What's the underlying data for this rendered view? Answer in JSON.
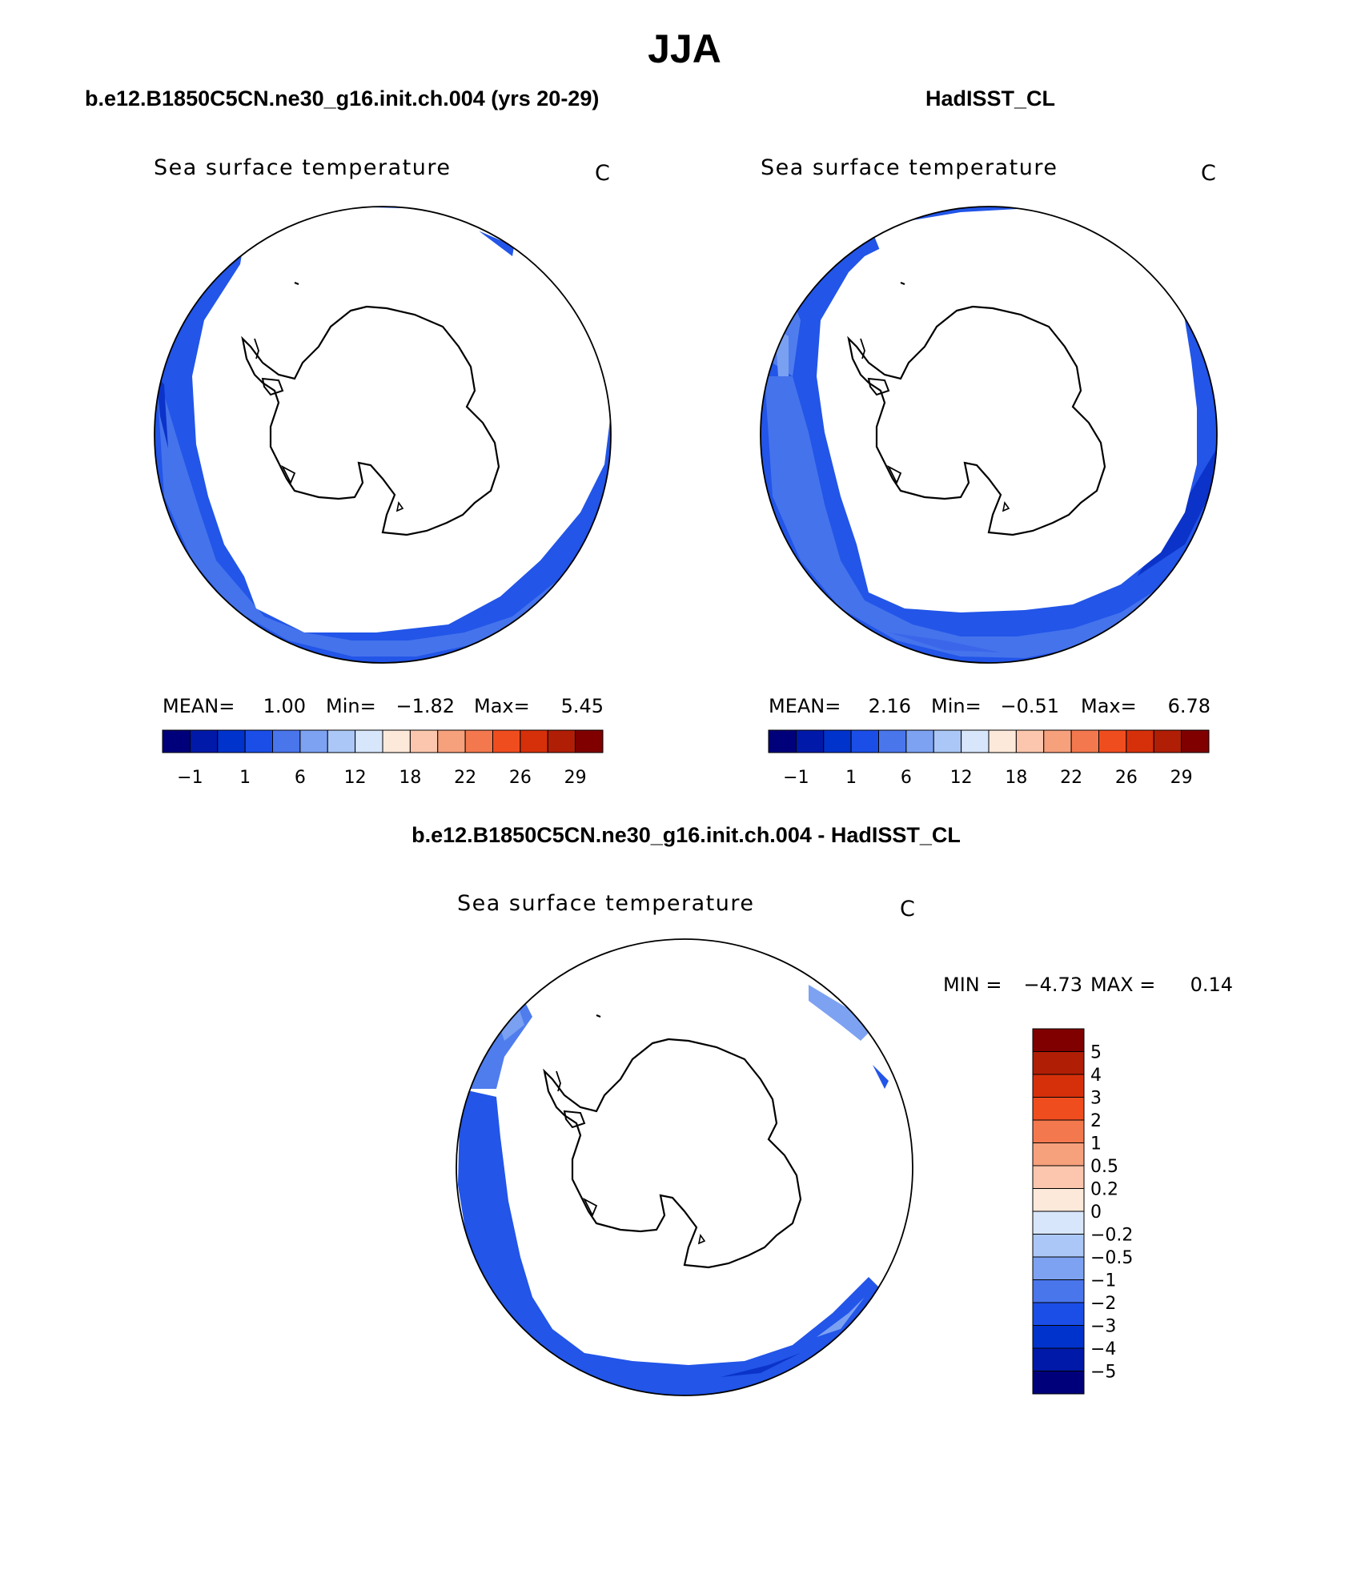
{
  "title": "JJA",
  "chart_data": [
    {
      "type": "heatmap",
      "panel_title": "b.e12.B1850C5CN.ne30_g16.init.ch.004 (yrs 20-29)",
      "variable": "Sea surface temperature",
      "units": "C",
      "stats": {
        "mean_label": "MEAN=",
        "mean": "1.00",
        "min_label": "Min=",
        "min": "−1.82",
        "max_label": "Max=",
        "max": "5.45"
      },
      "colorbar": {
        "orientation": "horizontal",
        "labels": [
          "−1",
          "1",
          "6",
          "12",
          "18",
          "22",
          "26",
          "29"
        ],
        "colors": [
          "#00007a",
          "#0019a8",
          "#0033cc",
          "#1a4ee6",
          "#4a76ec",
          "#7da2f2",
          "#abc7f7",
          "#d7e6fb",
          "#fde9da",
          "#fbc6ad",
          "#f7a07c",
          "#f4784e",
          "#f04d1f",
          "#d6300b",
          "#b01e06",
          "#800000"
        ]
      }
    },
    {
      "type": "heatmap",
      "panel_title": "HadISST_CL",
      "variable": "Sea surface temperature",
      "units": "C",
      "stats": {
        "mean_label": "MEAN=",
        "mean": "2.16",
        "min_label": "Min=",
        "min": "−0.51",
        "max_label": "Max=",
        "max": "6.78"
      },
      "colorbar": {
        "orientation": "horizontal",
        "labels": [
          "−1",
          "1",
          "6",
          "12",
          "18",
          "22",
          "26",
          "29"
        ],
        "colors": [
          "#00007a",
          "#0019a8",
          "#0033cc",
          "#1a4ee6",
          "#4a76ec",
          "#7da2f2",
          "#abc7f7",
          "#d7e6fb",
          "#fde9da",
          "#fbc6ad",
          "#f7a07c",
          "#f4784e",
          "#f04d1f",
          "#d6300b",
          "#b01e06",
          "#800000"
        ]
      }
    },
    {
      "type": "heatmap",
      "panel_title": "b.e12.B1850C5CN.ne30_g16.init.ch.004 - HadISST_CL",
      "variable": "Sea surface temperature",
      "units": "C",
      "stats": {
        "min_label": "MIN =",
        "min": "−4.73",
        "max_label": "MAX =",
        "max": "0.14"
      },
      "colorbar": {
        "orientation": "vertical",
        "labels": [
          "5",
          "4",
          "3",
          "2",
          "1",
          "0.5",
          "0.2",
          "0",
          "−0.2",
          "−0.5",
          "−1",
          "−2",
          "−3",
          "−4",
          "−5"
        ],
        "colors": [
          "#800000",
          "#b01e06",
          "#d6300b",
          "#f04d1f",
          "#f4784e",
          "#f7a07c",
          "#fbc6ad",
          "#fde9da",
          "#d7e6fb",
          "#abc7f7",
          "#7da2f2",
          "#4a76ec",
          "#1a4ee6",
          "#0033cc",
          "#0019a8",
          "#00007a"
        ]
      }
    }
  ]
}
